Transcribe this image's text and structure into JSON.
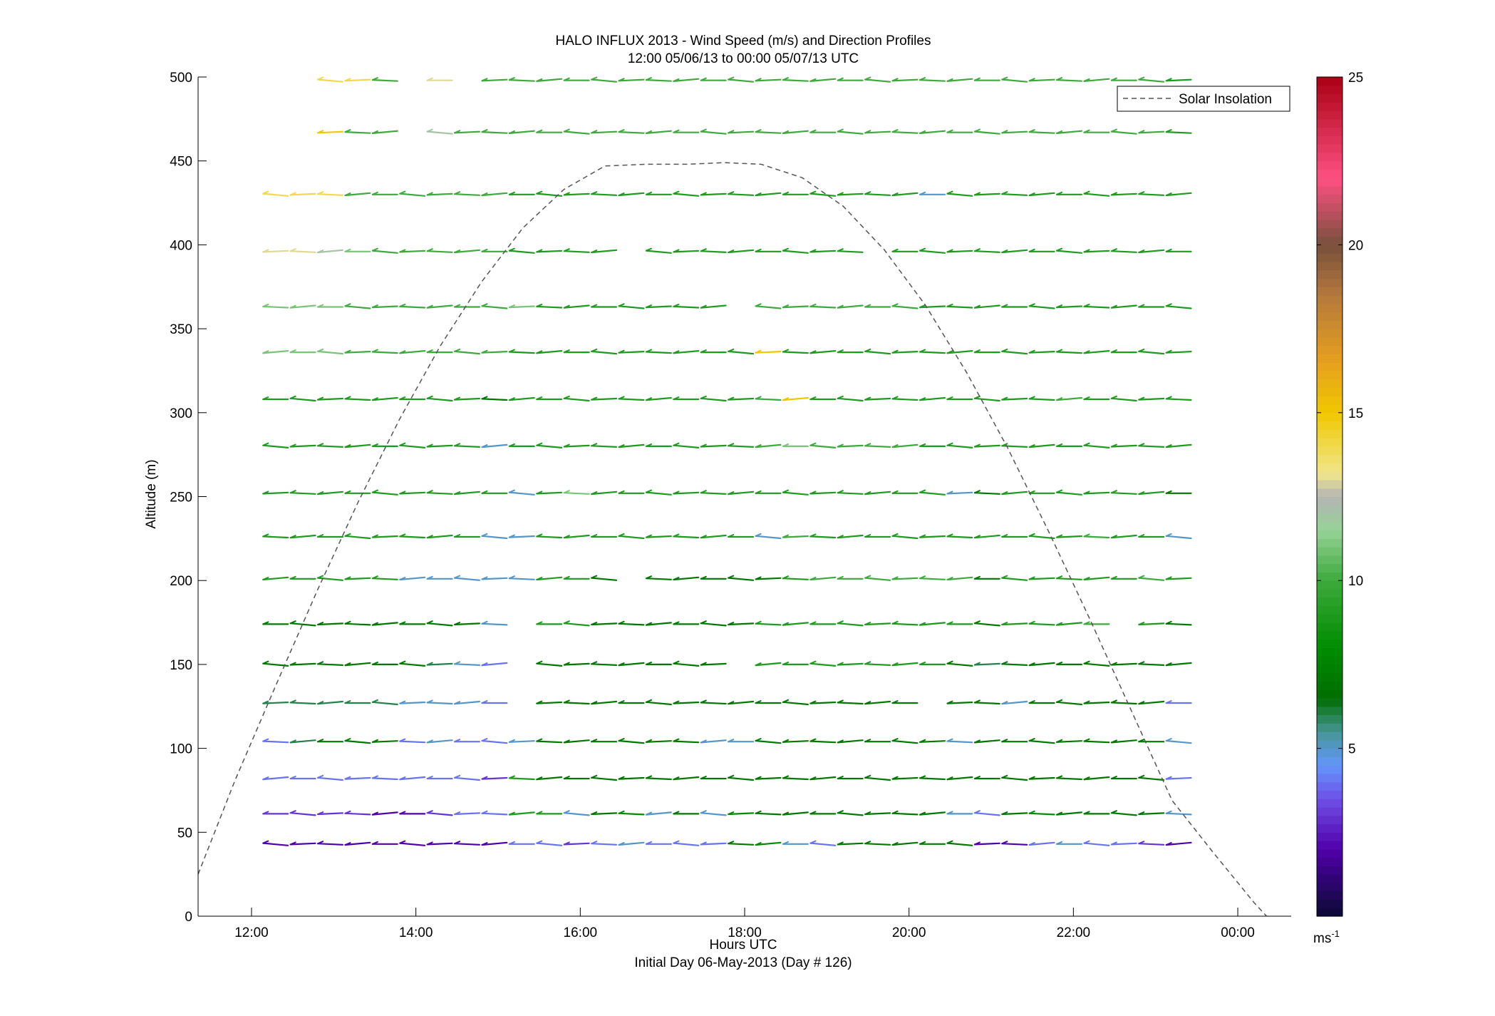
{
  "chart_data": {
    "type": "line",
    "title_line1": "HALO INFLUX 2013 - Wind Speed (m/s) and Direction Profiles",
    "title_line2": "12:00 05/06/13 to 00:00 05/07/13  UTC",
    "xlabel": "Hours UTC",
    "xlabel2": "Initial Day 06-May-2013 (Day # 126)",
    "ylabel": "Altitude (m)",
    "xlim": [
      11.35,
      24.65
    ],
    "ylim": [
      0,
      500
    ],
    "xticks": [
      {
        "value": 12,
        "label": "12:00"
      },
      {
        "value": 14,
        "label": "14:00"
      },
      {
        "value": 16,
        "label": "16:00"
      },
      {
        "value": 18,
        "label": "18:00"
      },
      {
        "value": 20,
        "label": "20:00"
      },
      {
        "value": 22,
        "label": "22:00"
      },
      {
        "value": 24,
        "label": "00:00"
      }
    ],
    "yticks": [
      0,
      50,
      100,
      150,
      200,
      250,
      300,
      350,
      400,
      450,
      500
    ],
    "legend": {
      "label": "Solar Insolation",
      "placement": "top-right"
    },
    "solar_insolation": {
      "x": [
        11.35,
        11.8,
        12.3,
        12.8,
        13.3,
        13.8,
        14.3,
        14.8,
        15.3,
        15.8,
        16.3,
        16.8,
        17.3,
        17.75,
        18.2,
        18.7,
        19.2,
        19.7,
        20.2,
        20.7,
        21.2,
        21.7,
        22.2,
        22.7,
        23.2,
        23.7,
        24.2,
        24.35
      ],
      "y": [
        25,
        81,
        138,
        194,
        247,
        296,
        340,
        378,
        410,
        433,
        447,
        448,
        448,
        449,
        448,
        440,
        423,
        397,
        364,
        324,
        279,
        229,
        177,
        123,
        69,
        38,
        8,
        0
      ],
      "style": "dashed",
      "color": "#555555"
    },
    "wind_barbs": {
      "altitudes": [
        43,
        61,
        82,
        104,
        127,
        150,
        174,
        201,
        226,
        252,
        280,
        308,
        336,
        363,
        396,
        430,
        467,
        498
      ],
      "time_start": 12.15,
      "time_step": 0.333,
      "columns": 34,
      "note_missing": "blank gaps occur where no data was recorded",
      "speed_grid": [
        [
          2,
          2,
          2,
          2,
          2,
          2,
          2,
          2,
          2,
          4,
          4,
          3,
          4,
          5,
          4,
          4,
          4,
          7,
          8,
          5,
          4,
          7,
          7,
          7,
          7,
          7,
          2,
          2,
          4,
          5,
          4,
          4,
          3,
          2
        ],
        [
          3,
          3,
          3,
          3,
          2,
          2,
          3,
          4,
          4,
          9,
          9,
          5,
          7,
          8,
          5,
          7,
          5,
          8,
          7,
          7,
          7,
          7,
          7,
          7,
          7,
          5,
          4,
          7,
          8,
          7,
          7,
          7,
          7,
          5
        ],
        [
          4,
          4,
          4,
          4,
          4,
          4,
          4,
          4,
          3,
          9,
          7,
          7,
          7,
          7,
          7,
          7,
          7,
          7,
          7,
          7,
          7,
          7,
          7,
          7,
          7,
          7,
          7,
          7,
          7,
          7,
          7,
          7,
          7,
          4
        ],
        [
          4,
          6,
          7,
          7,
          7,
          4,
          5,
          4,
          4,
          5,
          7,
          7,
          7,
          7,
          7,
          7,
          5,
          5,
          7,
          7,
          7,
          7,
          7,
          7,
          7,
          5,
          7,
          7,
          7,
          7,
          7,
          7,
          7,
          5
        ],
        [
          6,
          6,
          6,
          6,
          6,
          5,
          5,
          5,
          4,
          0,
          7,
          7,
          7,
          7,
          7,
          7,
          7,
          7,
          7,
          7,
          7,
          7,
          7,
          7,
          0,
          7,
          7,
          5,
          7,
          7,
          7,
          7,
          7,
          4
        ],
        [
          7,
          7,
          7,
          7,
          7,
          7,
          6,
          5,
          4,
          0,
          7,
          7,
          7,
          7,
          7,
          7,
          7,
          0,
          9,
          9,
          9,
          9,
          9,
          9,
          9,
          7,
          6,
          7,
          7,
          7,
          7,
          7,
          7,
          7
        ],
        [
          7,
          7,
          7,
          7,
          7,
          7,
          7,
          7,
          5,
          0,
          9,
          9,
          7,
          7,
          7,
          7,
          7,
          7,
          9,
          9,
          9,
          9,
          9,
          9,
          9,
          9,
          7,
          9,
          9,
          9,
          10,
          0,
          9,
          7
        ],
        [
          9,
          9,
          9,
          9,
          9,
          5,
          5,
          5,
          5,
          5,
          9,
          9,
          7,
          0,
          7,
          7,
          7,
          7,
          7,
          9,
          10,
          10,
          10,
          10,
          10,
          10,
          7,
          9,
          9,
          9,
          9,
          9,
          10,
          9
        ],
        [
          9,
          9,
          9,
          9,
          9,
          9,
          9,
          9,
          5,
          5,
          9,
          9,
          9,
          9,
          9,
          9,
          9,
          9,
          5,
          10,
          9,
          9,
          9,
          9,
          9,
          9,
          9,
          9,
          9,
          9,
          10,
          9,
          9,
          5
        ],
        [
          9,
          9,
          9,
          9,
          9,
          9,
          9,
          9,
          9,
          5,
          9,
          11,
          9,
          9,
          9,
          9,
          9,
          9,
          9,
          9,
          9,
          9,
          9,
          9,
          9,
          5,
          7,
          9,
          9,
          9,
          9,
          9,
          9,
          7
        ],
        [
          9,
          9,
          9,
          9,
          9,
          9,
          9,
          9,
          5,
          9,
          9,
          9,
          9,
          9,
          9,
          9,
          9,
          9,
          10,
          11,
          10,
          10,
          10,
          10,
          9,
          9,
          9,
          9,
          9,
          9,
          9,
          9,
          9,
          9
        ],
        [
          9,
          9,
          9,
          9,
          9,
          9,
          9,
          9,
          7,
          9,
          9,
          9,
          9,
          9,
          9,
          9,
          9,
          9,
          10,
          15,
          9,
          9,
          9,
          9,
          9,
          9,
          9,
          9,
          9,
          10,
          9,
          9,
          9,
          9
        ],
        [
          11,
          11,
          11,
          10,
          10,
          10,
          10,
          10,
          10,
          9,
          9,
          9,
          9,
          9,
          9,
          9,
          9,
          9,
          15,
          9,
          9,
          9,
          9,
          9,
          9,
          9,
          9,
          9,
          9,
          9,
          9,
          9,
          9,
          9
        ],
        [
          11,
          11,
          11,
          10,
          10,
          10,
          10,
          10,
          10,
          11,
          9,
          9,
          9,
          9,
          9,
          9,
          9,
          0,
          10,
          10,
          10,
          10,
          10,
          10,
          9,
          9,
          9,
          9,
          9,
          9,
          9,
          9,
          9,
          9
        ],
        [
          13,
          13,
          12,
          11,
          10,
          10,
          10,
          10,
          10,
          9,
          9,
          9,
          9,
          0,
          9,
          9,
          9,
          9,
          9,
          9,
          9,
          9,
          0,
          9,
          9,
          9,
          9,
          9,
          9,
          9,
          9,
          9,
          9,
          9
        ],
        [
          14,
          14,
          14,
          10,
          10,
          10,
          10,
          10,
          10,
          9,
          9,
          9,
          9,
          9,
          9,
          9,
          9,
          9,
          9,
          9,
          9,
          9,
          9,
          9,
          5,
          9,
          9,
          9,
          9,
          9,
          9,
          9,
          9,
          9
        ],
        [
          0,
          0,
          15,
          10,
          10,
          0,
          12,
          10,
          10,
          10,
          10,
          10,
          10,
          10,
          10,
          10,
          10,
          10,
          10,
          10,
          10,
          10,
          10,
          10,
          10,
          10,
          10,
          10,
          10,
          10,
          10,
          10,
          10,
          9
        ],
        [
          0,
          0,
          14,
          14,
          10,
          0,
          13,
          0,
          10,
          10,
          10,
          10,
          10,
          10,
          10,
          10,
          10,
          10,
          10,
          10,
          10,
          10,
          10,
          10,
          10,
          10,
          10,
          10,
          10,
          10,
          10,
          10,
          10,
          9
        ]
      ]
    },
    "colorbar": {
      "min": 0,
      "max": 25,
      "ticks": [
        5,
        10,
        15,
        20,
        25
      ],
      "unit_label": "ms",
      "unit_exp": "-1"
    }
  },
  "colors": {
    "axis": "#000000",
    "background": "#ffffff"
  }
}
